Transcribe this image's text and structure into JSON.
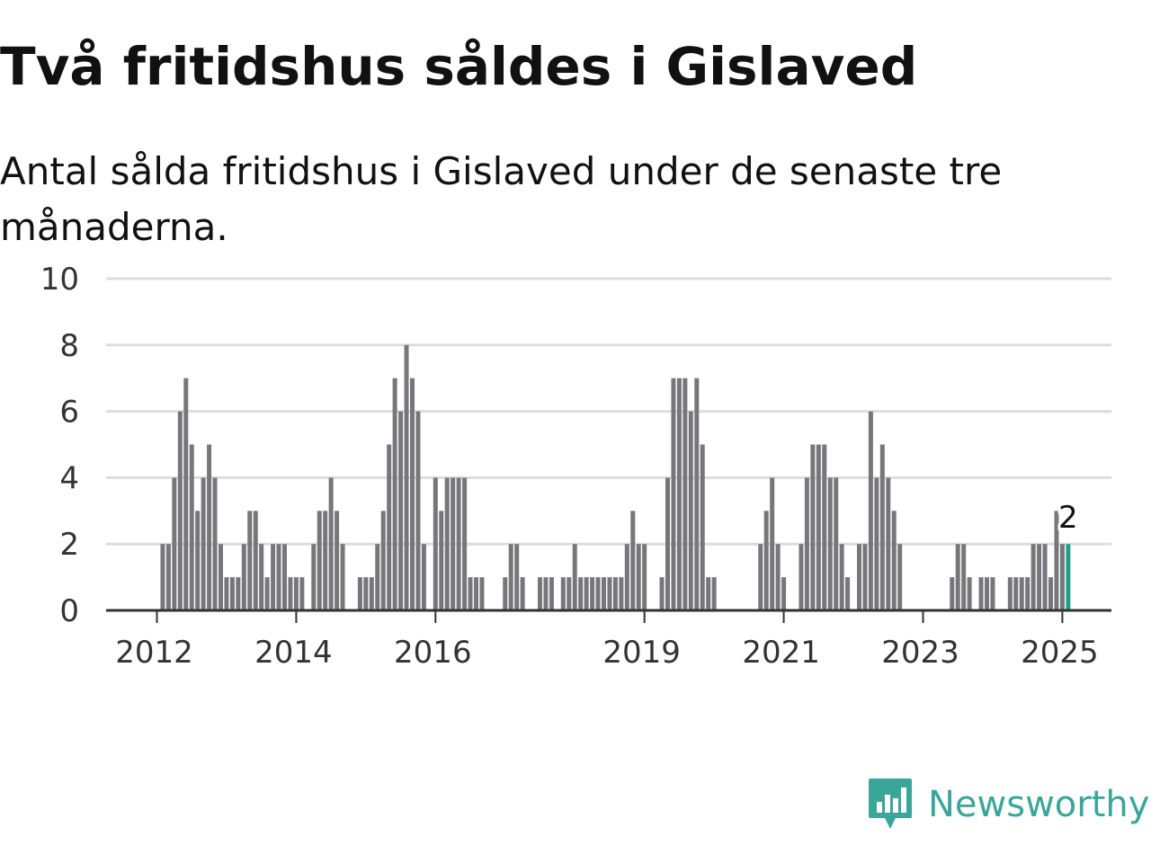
{
  "title": "Två fritidshus såldes i Gislaved",
  "subtitle": "Antal sålda fritidshus i Gislaved under de senaste tre månaderna.",
  "brand": {
    "name": "Newsworthy",
    "color": "#3aa69a",
    "icon": "newsworthy-logo-icon"
  },
  "colors": {
    "bar": "#77767b",
    "highlight": "#22a08f",
    "grid": "#dddddd",
    "axis": "#333333"
  },
  "chart_data": {
    "type": "bar",
    "ylim": [
      0,
      10
    ],
    "yticks": [
      0,
      2,
      4,
      6,
      8,
      10
    ],
    "grid": true,
    "xtick_labels": [
      {
        "label": "2012",
        "index": 0
      },
      {
        "label": "2014",
        "index": 24
      },
      {
        "label": "2016",
        "index": 48
      },
      {
        "label": "2019",
        "index": 84
      },
      {
        "label": "2021",
        "index": 108
      },
      {
        "label": "2023",
        "index": 132
      },
      {
        "label": "2025",
        "index": 156
      }
    ],
    "values": [
      0,
      2,
      2,
      4,
      6,
      7,
      5,
      3,
      4,
      5,
      4,
      2,
      1,
      1,
      1,
      2,
      3,
      3,
      2,
      1,
      2,
      2,
      2,
      1,
      1,
      1,
      0,
      2,
      3,
      3,
      4,
      3,
      2,
      0,
      0,
      1,
      1,
      1,
      2,
      3,
      5,
      7,
      6,
      8,
      7,
      6,
      2,
      0,
      4,
      3,
      4,
      4,
      4,
      4,
      1,
      1,
      1,
      0,
      0,
      0,
      1,
      2,
      2,
      1,
      0,
      0,
      1,
      1,
      1,
      0,
      1,
      1,
      2,
      1,
      1,
      1,
      1,
      1,
      1,
      1,
      1,
      2,
      3,
      2,
      2,
      0,
      0,
      1,
      4,
      7,
      7,
      7,
      6,
      7,
      5,
      1,
      1,
      0,
      0,
      0,
      0,
      0,
      0,
      0,
      2,
      3,
      4,
      2,
      1,
      0,
      0,
      2,
      4,
      5,
      5,
      5,
      4,
      4,
      2,
      1,
      0,
      2,
      2,
      6,
      4,
      5,
      4,
      3,
      2,
      0,
      0,
      0,
      0,
      0,
      0,
      0,
      0,
      1,
      2,
      2,
      1,
      0,
      1,
      1,
      1,
      0,
      0,
      1,
      1,
      1,
      1,
      2,
      2,
      2,
      1,
      3,
      2,
      2
    ],
    "highlight_index": 157,
    "highlight_label": "2"
  }
}
